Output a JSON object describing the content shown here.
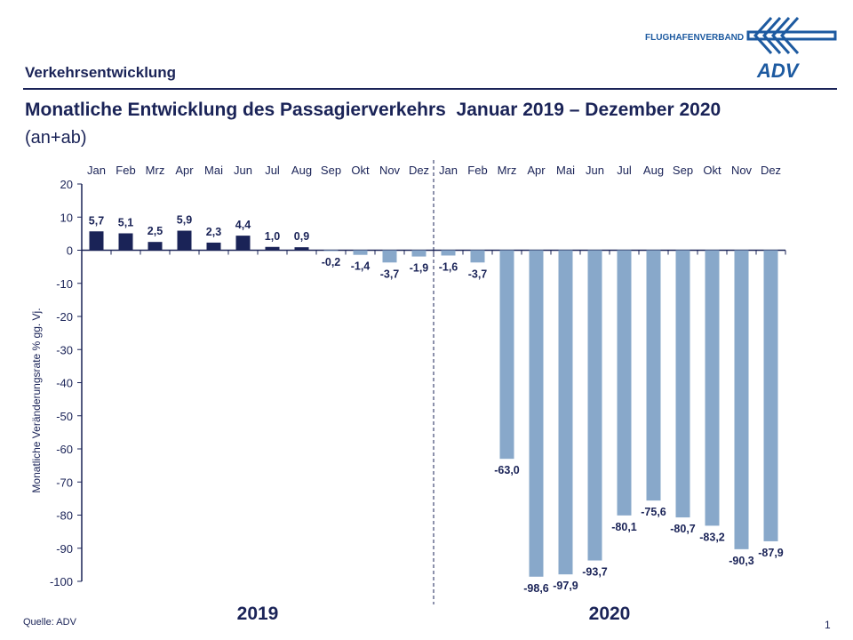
{
  "header": {
    "section": "Verkehrsentwicklung",
    "title": "Monatliche Entwicklung des Passagierverkehrs  Januar 2019 – Dezember 2020",
    "subtitle": "(an+ab)",
    "logo_text": "FLUGHAFENVERBAND",
    "logo_mark": "ADV"
  },
  "footer": {
    "source": "Quelle: ADV",
    "page": "1"
  },
  "colors": {
    "text": "#1a2357",
    "positive": "#1a2357",
    "negative": "#88a8ca",
    "brand": "#1d5aa0"
  },
  "chart_data": {
    "type": "bar",
    "ylabel": "Monatliche Veränderungsrate % gg. Vj.",
    "ylim": [
      -100,
      20
    ],
    "yticks": [
      20,
      10,
      0,
      -10,
      -20,
      -30,
      -40,
      -50,
      -60,
      -70,
      -80,
      -90,
      -100
    ],
    "categories": [
      "Jan",
      "Feb",
      "Mrz",
      "Apr",
      "Mai",
      "Jun",
      "Jul",
      "Aug",
      "Sep",
      "Okt",
      "Nov",
      "Dez",
      "Jan",
      "Feb",
      "Mrz",
      "Apr",
      "Mai",
      "Jun",
      "Jul",
      "Aug",
      "Sep",
      "Okt",
      "Nov",
      "Dez"
    ],
    "groups": [
      "2019",
      "2020"
    ],
    "values": [
      5.7,
      5.1,
      2.5,
      5.9,
      2.3,
      4.4,
      1.0,
      0.9,
      -0.2,
      -1.4,
      -3.7,
      -1.9,
      -1.6,
      -3.7,
      -63.0,
      -98.6,
      -97.9,
      -93.7,
      -80.1,
      -75.6,
      -80.7,
      -83.2,
      -90.3,
      -87.9
    ],
    "labels": [
      "5,7",
      "5,1",
      "2,5",
      "5,9",
      "2,3",
      "4,4",
      "1,0",
      "0,9",
      "-0,2",
      "-1,4",
      "-3,7",
      "-1,9",
      "-1,6",
      "-3,7",
      "-63,0",
      "-98,6",
      "-97,9",
      "-93,7",
      "-80,1",
      "-75,6",
      "-80,7",
      "-83,2",
      "-90,3",
      "-87,9"
    ],
    "grid": false
  }
}
